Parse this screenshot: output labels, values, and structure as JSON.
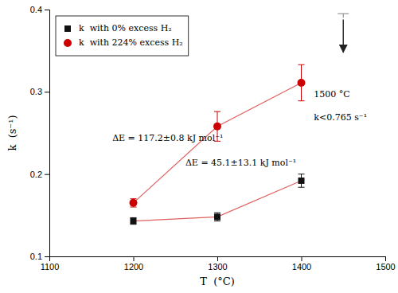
{
  "chart_data": {
    "type": "line",
    "xlabel": "T  (°C)",
    "ylabel": "k  (s⁻¹)",
    "x": [
      1200,
      1300,
      1400
    ],
    "color": "#e06060",
    "series": [
      {
        "name": "k  with 0% excess H₂",
        "color": "#111111",
        "marker": "square",
        "values": [
          0.143,
          0.148,
          0.192
        ],
        "errors": [
          0.004,
          0.005,
          0.008
        ]
      },
      {
        "name": "k  with 224% excess H₂",
        "color": "#cc0000",
        "marker": "circle",
        "values": [
          0.165,
          0.258,
          0.311
        ],
        "errors": [
          0.005,
          0.018,
          0.022
        ]
      }
    ],
    "xlim": [
      1100,
      1500
    ],
    "ylim": [
      0.1,
      0.4
    ],
    "xticks": [
      1100,
      1200,
      1300,
      1400,
      1500
    ],
    "yticks": [
      0.1,
      0.2,
      0.3,
      0.4
    ],
    "legend": "upper left",
    "grid": false,
    "annotations": [
      {
        "text": "ΔE = 117.2±0.8 kJ mol⁻¹",
        "x": 1175,
        "y": 0.243
      },
      {
        "text": "ΔE = 45.1±13.1 kJ mol⁻¹",
        "x": 1262,
        "y": 0.213
      },
      {
        "text": "1500 °C",
        "x": 1415,
        "y": 0.296
      },
      {
        "text": "k<0.765 s⁻¹",
        "x": 1415,
        "y": 0.268
      }
    ],
    "arrows": [
      {
        "x": 1450,
        "y_start": 0.388,
        "y_end": 0.348
      }
    ],
    "bound_marks": [
      {
        "x": 1450,
        "y_start": 0.39,
        "y_end": 0.395
      }
    ]
  }
}
